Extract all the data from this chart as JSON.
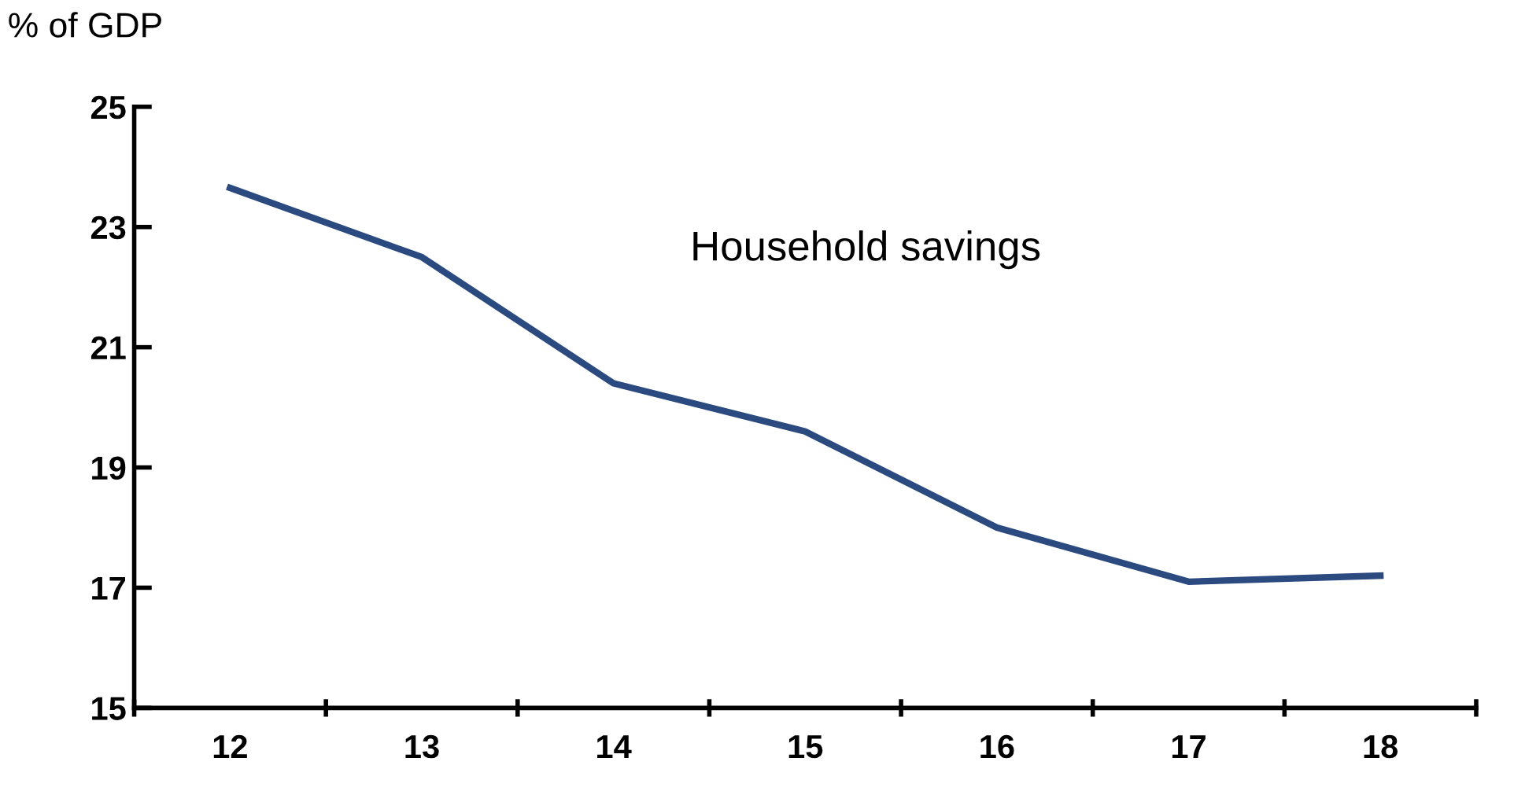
{
  "chart_data": {
    "type": "line",
    "ylabel": "% of GDP",
    "categories": [
      "12",
      "13",
      "14",
      "15",
      "16",
      "17",
      "18"
    ],
    "series": [
      {
        "name": "Household savings",
        "color": "#2b4a80",
        "values": [
          23.65,
          22.5,
          20.4,
          19.6,
          18.0,
          17.1,
          17.2
        ]
      }
    ],
    "ylim": [
      15,
      25
    ],
    "yticks": [
      15,
      17,
      19,
      21,
      23,
      25
    ],
    "grid": false,
    "legend": false,
    "marker": "none",
    "line_style": "solid"
  }
}
